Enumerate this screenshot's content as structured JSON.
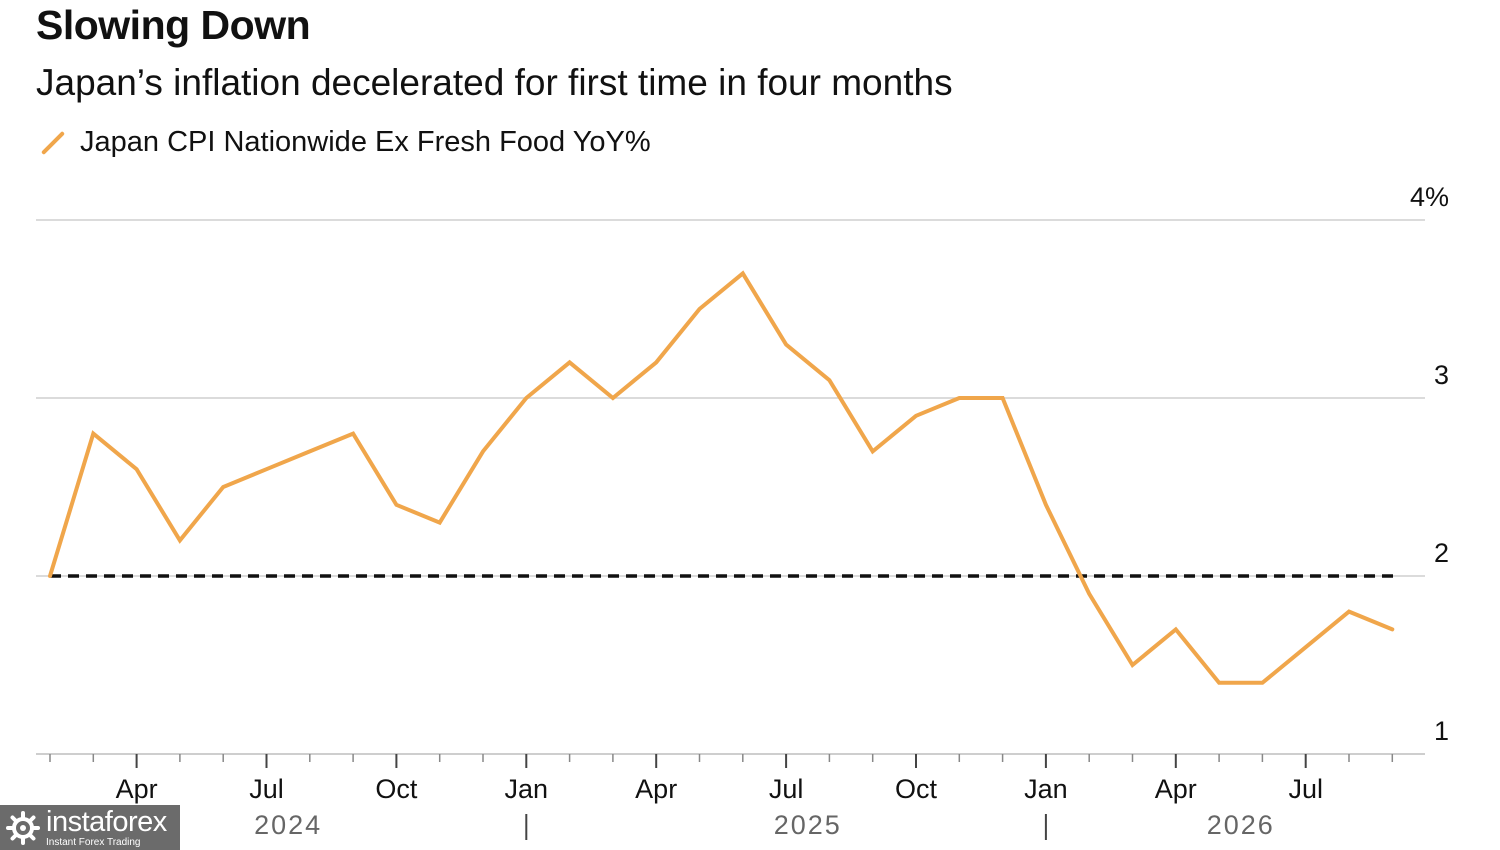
{
  "header": {
    "title": "Slowing Down",
    "subtitle": "Japan’s inflation decelerated for first time in four months"
  },
  "legend": {
    "label": "Japan CPI Nationwide Ex Fresh Food YoY%",
    "color": "#f0a64b"
  },
  "chart_data": {
    "type": "line",
    "title": "Slowing Down",
    "subtitle": "Japan’s inflation decelerated for first time in four months",
    "xlabel": "",
    "ylabel": "",
    "ylim": [
      1,
      4
    ],
    "y_ticks": [
      {
        "value": 4,
        "label": "4%"
      },
      {
        "value": 3,
        "label": "3"
      },
      {
        "value": 2,
        "label": "2"
      },
      {
        "value": 1,
        "label": "1"
      }
    ],
    "x": [
      "2024-01",
      "2024-02",
      "2024-03",
      "2024-04",
      "2024-05",
      "2024-06",
      "2024-07",
      "2024-08",
      "2024-09",
      "2024-10",
      "2024-11",
      "2024-12",
      "2025-01",
      "2025-02",
      "2025-03",
      "2025-04",
      "2025-05",
      "2025-06",
      "2025-07",
      "2025-08",
      "2025-09",
      "2025-10",
      "2025-11",
      "2025-12",
      "2026-01",
      "2026-02",
      "2026-03",
      "2026-04",
      "2026-05",
      "2026-06",
      "2026-07",
      "2026-08"
    ],
    "x_ticks": [
      {
        "index": 2,
        "label": "Apr"
      },
      {
        "index": 5,
        "label": "Jul"
      },
      {
        "index": 8,
        "label": "Oct"
      },
      {
        "index": 11,
        "label": "Jan"
      },
      {
        "index": 14,
        "label": "Apr"
      },
      {
        "index": 17,
        "label": "Jul"
      },
      {
        "index": 20,
        "label": "Oct"
      },
      {
        "index": 23,
        "label": "Jan"
      },
      {
        "index": 26,
        "label": "Apr"
      },
      {
        "index": 29,
        "label": "Jul"
      }
    ],
    "year_labels": [
      {
        "label": "2024",
        "center_index": 5.5
      },
      {
        "label": "2025",
        "center_index": 17.5
      },
      {
        "label": "2026",
        "center_index": 27.5
      }
    ],
    "year_separators": [
      11,
      23
    ],
    "series": [
      {
        "name": "Japan CPI Nationwide Ex Fresh Food YoY%",
        "color": "#f0a64b",
        "values": [
          2.0,
          2.8,
          2.6,
          2.2,
          2.5,
          2.6,
          2.7,
          2.8,
          2.4,
          2.3,
          2.7,
          3.0,
          3.2,
          3.0,
          3.2,
          3.5,
          3.7,
          3.3,
          3.1,
          2.7,
          2.9,
          3.0,
          3.0,
          2.4,
          1.9,
          1.5,
          1.7,
          1.4,
          1.4,
          1.6,
          1.8,
          1.7
        ]
      }
    ],
    "reference_line": {
      "value": 2,
      "style": "dashed",
      "color": "#111111"
    },
    "grid": true,
    "legend_position": "top-left"
  },
  "watermark": {
    "brand": "instaforex",
    "tagline": "Instant Forex Trading"
  }
}
